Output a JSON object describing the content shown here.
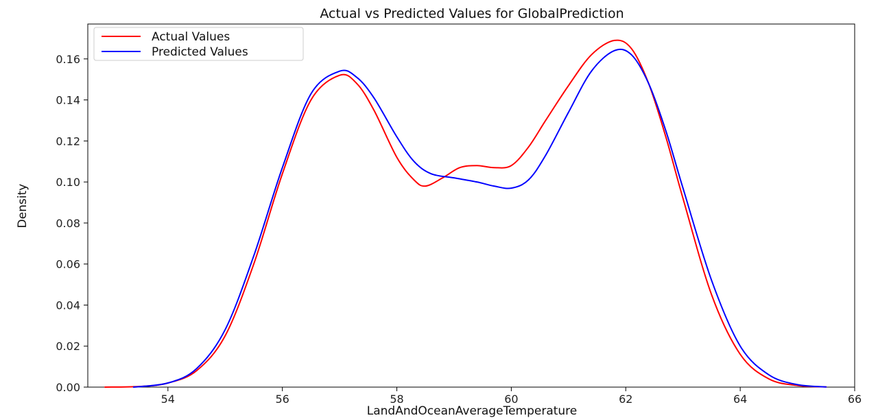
{
  "chart_data": {
    "type": "line",
    "title": "Actual vs Predicted Values for GlobalPrediction",
    "xlabel": "LandAndOceanAverageTemperature",
    "ylabel": "Density",
    "xlim": [
      52.6,
      66.0
    ],
    "ylim": [
      0.0,
      0.177
    ],
    "x_ticks": [
      54,
      56,
      58,
      60,
      62,
      64,
      66
    ],
    "y_ticks": [
      0.0,
      0.02,
      0.04,
      0.06,
      0.08,
      0.1,
      0.12,
      0.14,
      0.16
    ],
    "y_tick_labels": [
      "0.00",
      "0.02",
      "0.04",
      "0.06",
      "0.08",
      "0.10",
      "0.12",
      "0.14",
      "0.16"
    ],
    "legend_position": "top-left",
    "grid": false,
    "series": [
      {
        "name": "Actual Values",
        "color": "#ff0000",
        "x": [
          52.9,
          53.5,
          54.0,
          54.5,
          55.0,
          55.5,
          56.0,
          56.5,
          57.0,
          57.3,
          57.6,
          58.0,
          58.3,
          58.5,
          58.8,
          59.1,
          59.4,
          59.7,
          60.0,
          60.3,
          60.6,
          61.0,
          61.4,
          61.8,
          62.1,
          62.4,
          62.7,
          63.0,
          63.5,
          64.0,
          64.5,
          65.0,
          65.5
        ],
        "y": [
          0.0,
          0.0003,
          0.002,
          0.008,
          0.025,
          0.06,
          0.104,
          0.14,
          0.152,
          0.148,
          0.135,
          0.112,
          0.101,
          0.098,
          0.102,
          0.107,
          0.108,
          0.107,
          0.108,
          0.117,
          0.13,
          0.147,
          0.162,
          0.169,
          0.165,
          0.148,
          0.122,
          0.092,
          0.045,
          0.016,
          0.004,
          0.0008,
          0.0001
        ]
      },
      {
        "name": "Predicted Values",
        "color": "#0000ff",
        "x": [
          53.4,
          54.0,
          54.5,
          55.0,
          55.5,
          56.0,
          56.5,
          57.0,
          57.3,
          57.6,
          58.0,
          58.3,
          58.6,
          59.0,
          59.4,
          59.7,
          60.0,
          60.3,
          60.6,
          61.0,
          61.4,
          61.8,
          62.1,
          62.4,
          62.7,
          63.0,
          63.5,
          64.0,
          64.5,
          65.0,
          65.5
        ],
        "y": [
          0.0,
          0.002,
          0.009,
          0.028,
          0.064,
          0.107,
          0.143,
          0.154,
          0.151,
          0.141,
          0.122,
          0.11,
          0.104,
          0.102,
          0.1,
          0.098,
          0.097,
          0.101,
          0.113,
          0.134,
          0.154,
          0.164,
          0.162,
          0.148,
          0.125,
          0.097,
          0.052,
          0.02,
          0.006,
          0.0012,
          0.0001
        ]
      }
    ]
  }
}
